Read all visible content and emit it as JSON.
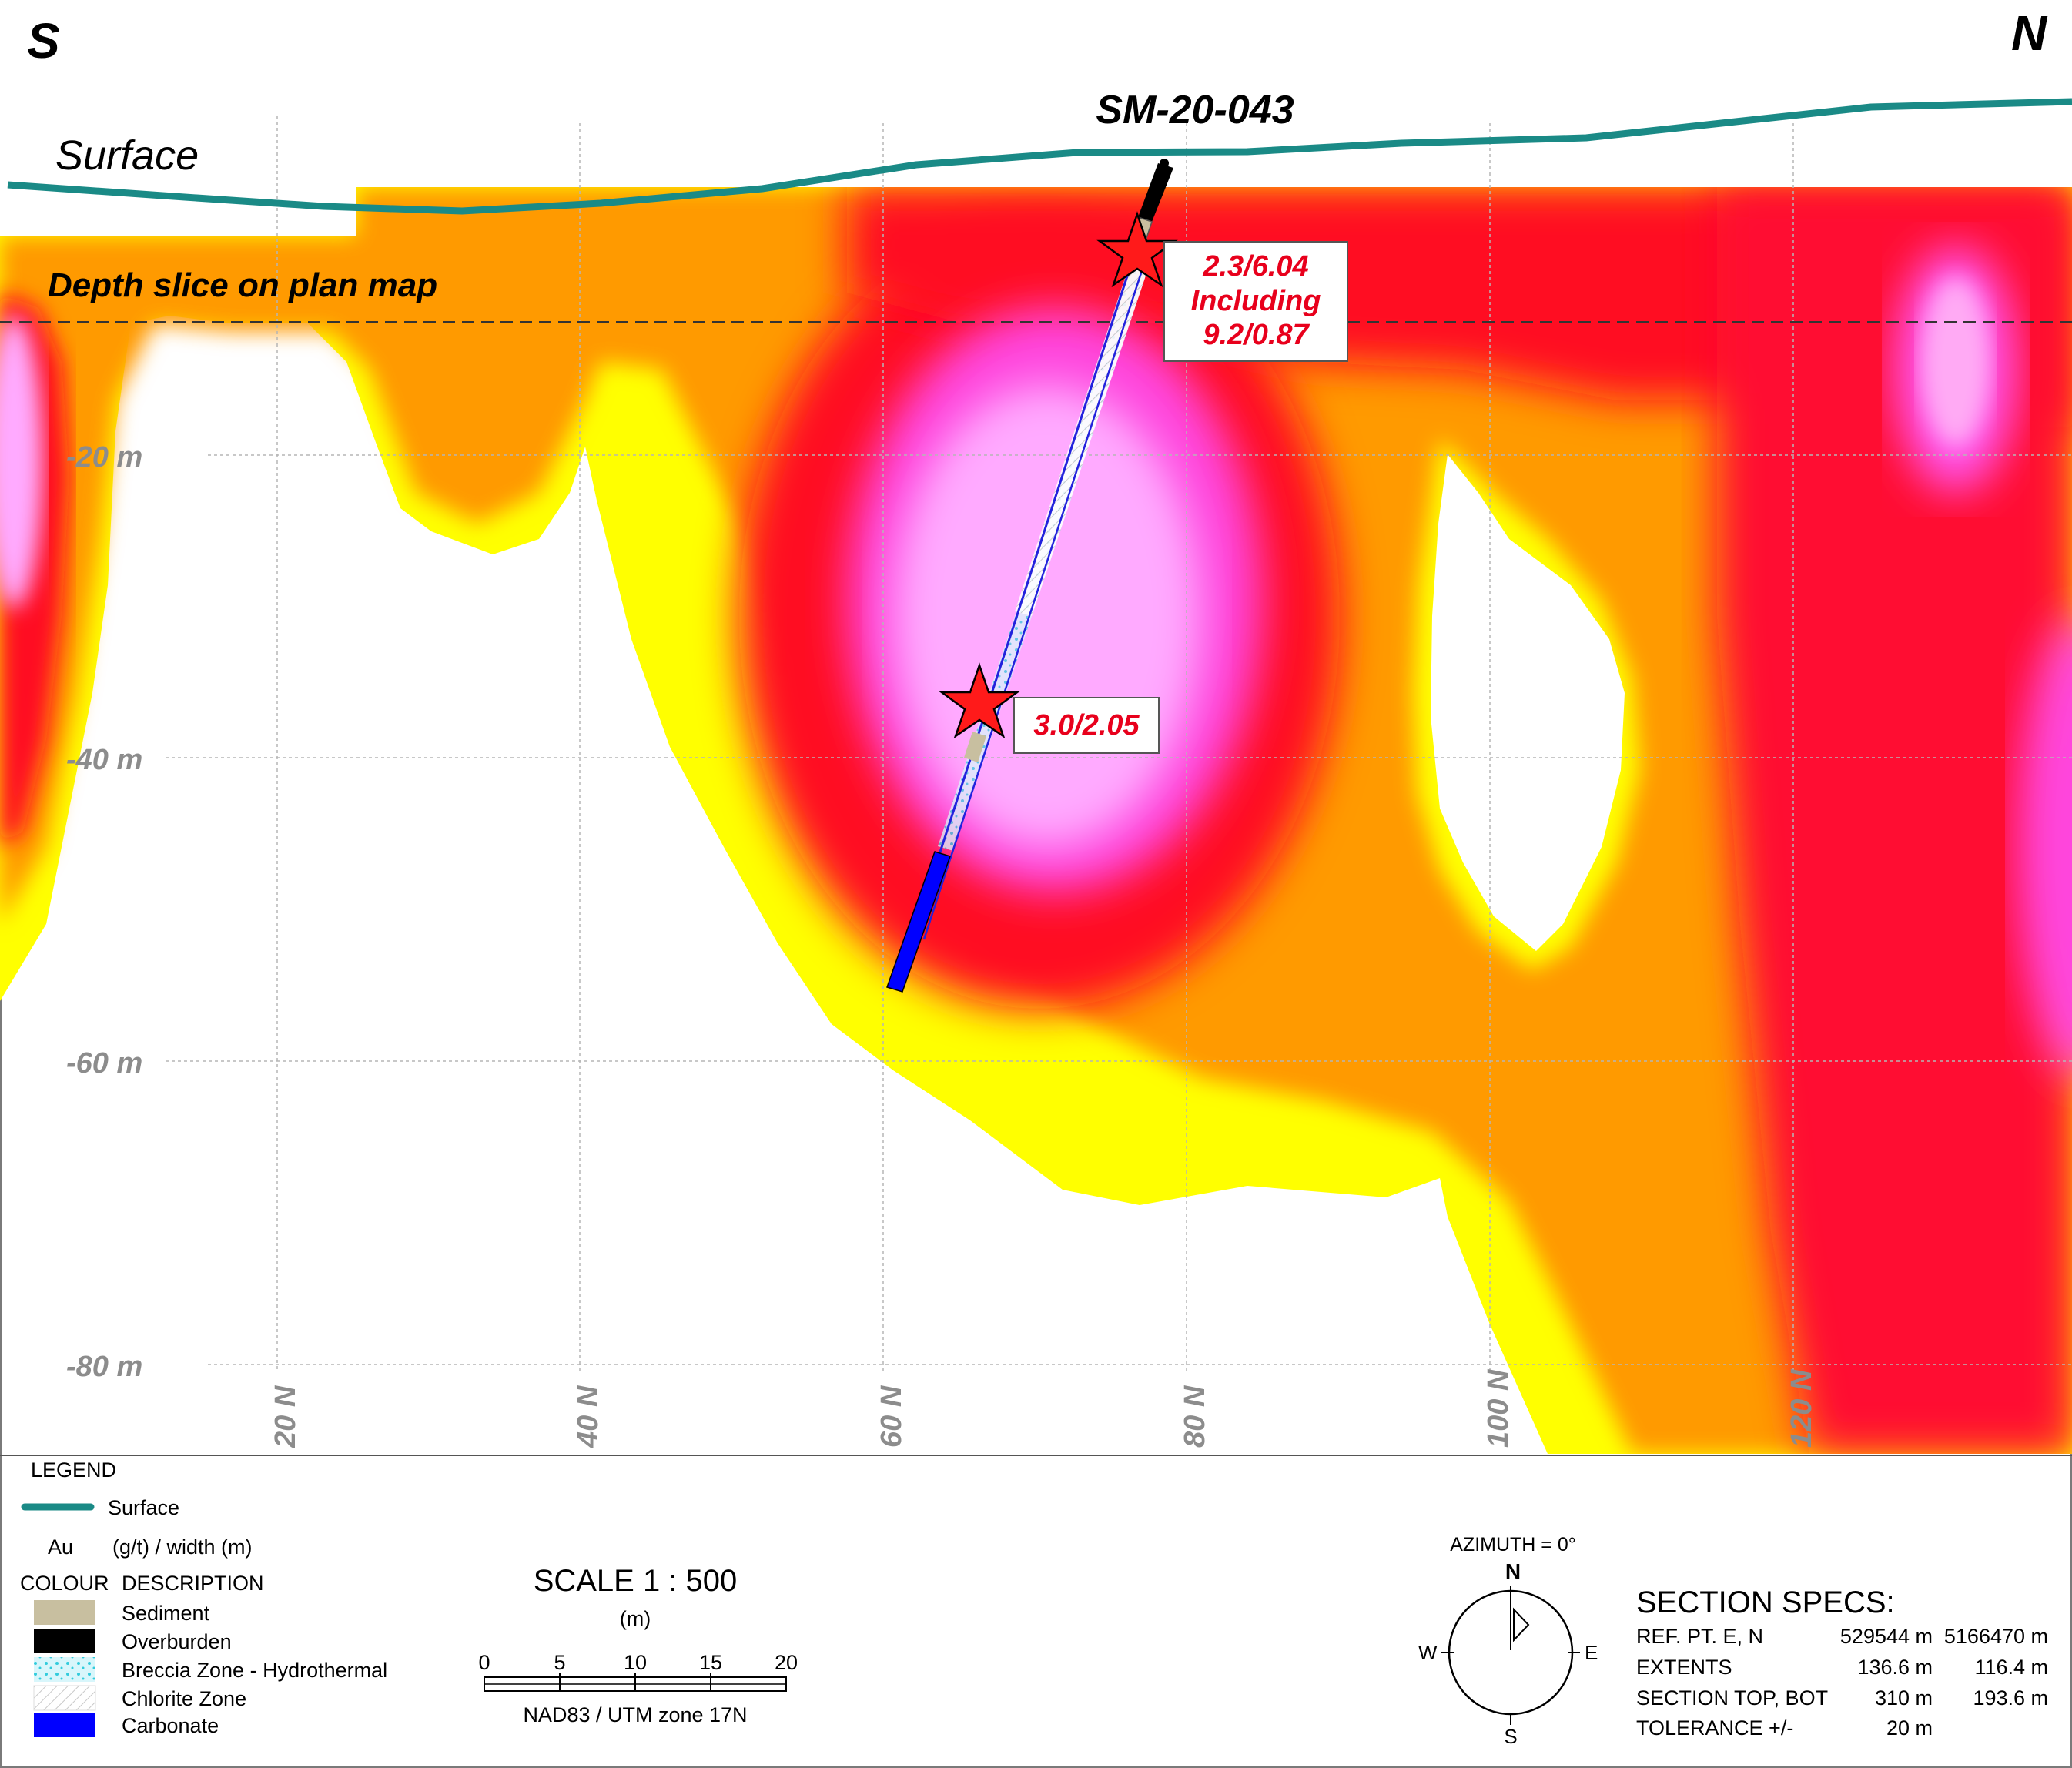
{
  "orientation": {
    "left": "S",
    "right": "N"
  },
  "surface_label": "Surface",
  "hole_id": "SM-20-043",
  "depth_slice_label": "Depth slice on plan map",
  "callouts": {
    "upper": {
      "line1": "2.3/6.04",
      "line2": "Including",
      "line3": "9.2/0.87"
    },
    "lower": {
      "line1": "3.0/2.05"
    }
  },
  "axes": {
    "depth_ticks": [
      {
        "label": "-20 m"
      },
      {
        "label": "-40 m"
      },
      {
        "label": "-60 m"
      },
      {
        "label": "-80 m"
      }
    ],
    "northing_ticks": [
      {
        "label": "20 N"
      },
      {
        "label": "40 N"
      },
      {
        "label": "60 N"
      },
      {
        "label": "80 N"
      },
      {
        "label": "100 N"
      },
      {
        "label": "120 N"
      }
    ]
  },
  "legend": {
    "title": "LEGEND",
    "surface_label": "Surface",
    "au_label": "Au",
    "au_units": "(g/t) / width (m)",
    "colour_header": "COLOUR",
    "description_header": "DESCRIPTION",
    "items": [
      {
        "label": "Sediment",
        "color": "#c8bfa0"
      },
      {
        "label": "Overburden",
        "color": "#000000"
      },
      {
        "label": "Breccia Zone - Hydrothermal",
        "color": "#cdeff6"
      },
      {
        "label": "Chlorite Zone",
        "color": "#ffffff"
      },
      {
        "label": "Carbonate",
        "color": "#0000ff"
      }
    ]
  },
  "scale": {
    "title": "SCALE  1 : 500",
    "unit": "(m)",
    "ticks": [
      "0",
      "5",
      "10",
      "15",
      "20"
    ],
    "datum": "NAD83 / UTM zone 17N"
  },
  "compass": {
    "azimuth": "AZIMUTH = 0°",
    "n": "N",
    "s": "S",
    "e": "E",
    "w": "W"
  },
  "section_specs": {
    "title": "SECTION  SPECS:",
    "rows": [
      {
        "label": "REF. PT.  E, N",
        "v1": "529544 m",
        "v2": "5166470 m"
      },
      {
        "label": "EXTENTS",
        "v1": "136.6 m",
        "v2": "116.4 m"
      },
      {
        "label": "SECTION TOP, BOT",
        "v1": "310 m",
        "v2": "193.6 m"
      },
      {
        "label": "TOLERANCE  +/-",
        "v1": "20 m",
        "v2": ""
      }
    ]
  },
  "colors": {
    "surface_line": "#1a8a86",
    "callout_text": "#e8001c",
    "axis_label": "#8c8c8c",
    "drill_trace": "#2222dd",
    "carbonate": "#0000ff"
  }
}
